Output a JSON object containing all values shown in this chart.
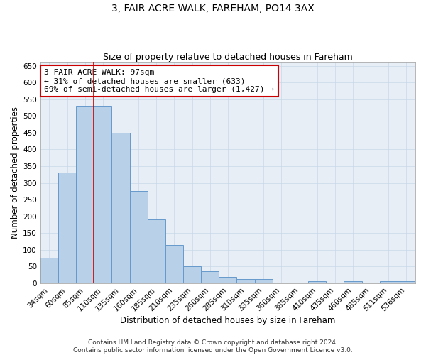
{
  "title": "3, FAIR ACRE WALK, FAREHAM, PO14 3AX",
  "subtitle": "Size of property relative to detached houses in Fareham",
  "xlabel": "Distribution of detached houses by size in Fareham",
  "ylabel": "Number of detached properties",
  "bar_labels": [
    "34sqm",
    "60sqm",
    "85sqm",
    "110sqm",
    "135sqm",
    "160sqm",
    "185sqm",
    "210sqm",
    "235sqm",
    "260sqm",
    "285sqm",
    "310sqm",
    "335sqm",
    "360sqm",
    "385sqm",
    "410sqm",
    "435sqm",
    "460sqm",
    "485sqm",
    "511sqm",
    "536sqm"
  ],
  "bar_values": [
    75,
    330,
    530,
    530,
    450,
    275,
    190,
    115,
    50,
    35,
    18,
    12,
    12,
    0,
    0,
    5,
    0,
    5,
    0,
    5,
    5
  ],
  "bar_color": "#b8d0e8",
  "bar_edge_color": "#6699cc",
  "vline_x": 2.5,
  "vline_color": "#cc0000",
  "annotation_text": "3 FAIR ACRE WALK: 97sqm\n← 31% of detached houses are smaller (633)\n69% of semi-detached houses are larger (1,427) →",
  "annotation_box_color": "#ffffff",
  "annotation_box_edge_color": "#cc0000",
  "ylim": [
    0,
    660
  ],
  "yticks": [
    0,
    50,
    100,
    150,
    200,
    250,
    300,
    350,
    400,
    450,
    500,
    550,
    600,
    650
  ],
  "footer_line1": "Contains HM Land Registry data © Crown copyright and database right 2024.",
  "footer_line2": "Contains public sector information licensed under the Open Government Licence v3.0.",
  "background_color": "#ffffff",
  "plot_bg_color": "#e8eef5",
  "grid_color": "#c8d8e8",
  "title_fontsize": 10,
  "subtitle_fontsize": 9,
  "axis_label_fontsize": 8.5,
  "tick_fontsize": 7.5,
  "annotation_fontsize": 8,
  "footer_fontsize": 6.5
}
